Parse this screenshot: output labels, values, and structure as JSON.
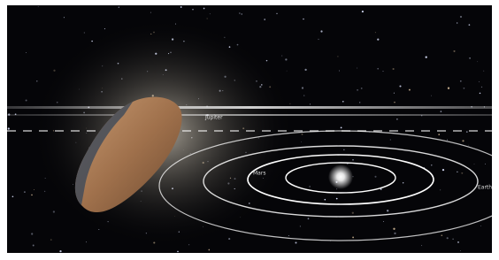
{
  "image": {
    "labels": [
      "Jupiter",
      "Mars",
      "Earth"
    ]
  }
}
